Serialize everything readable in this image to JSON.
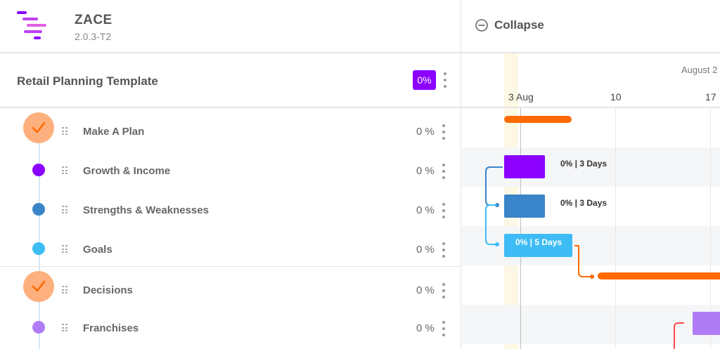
{
  "app": {
    "name": "ZACE",
    "version": "2.0.3-T2"
  },
  "project": {
    "title": "Retail Planning Template",
    "percent": "0%"
  },
  "tasks": [
    {
      "name": "Make A Plan",
      "percent": "0 %",
      "marker": "check",
      "color": "#fdb07d"
    },
    {
      "name": "Growth & Income",
      "percent": "0 %",
      "marker": "dot",
      "color": "#8b00ff"
    },
    {
      "name": "Strengths & Weaknesses",
      "percent": "0 %",
      "marker": "dot",
      "color": "#3a84c9"
    },
    {
      "name": "Goals",
      "percent": "0 %",
      "marker": "dot",
      "color": "#3ebcf5"
    },
    {
      "name": "Decisions",
      "percent": "0 %",
      "marker": "check",
      "color": "#fdb07d"
    },
    {
      "name": "Franchises",
      "percent": "0 %",
      "marker": "dot",
      "color": "#b07cf5"
    }
  ],
  "gantt": {
    "collapse_label": "Collapse",
    "month_label": "August 2",
    "days": [
      "3 Aug",
      "10",
      "17"
    ],
    "bar_labels": {
      "growth": "0% | 3 Days",
      "strengths": "0% | 3 Days",
      "goals": "0% | 5 Days"
    }
  },
  "colors": {
    "accent": "#8b00ff",
    "summary_bar": "#ff6a00",
    "growth": "#8b00ff",
    "strengths": "#3a84c9",
    "goals": "#3ebcf5",
    "franchises": "#b07cf5",
    "today_band": "#fdf8e4"
  },
  "icons": [
    "logo-icon",
    "check-icon",
    "drag-handle-icon",
    "kebab-menu-icon",
    "collapse-minus-circle-icon"
  ]
}
